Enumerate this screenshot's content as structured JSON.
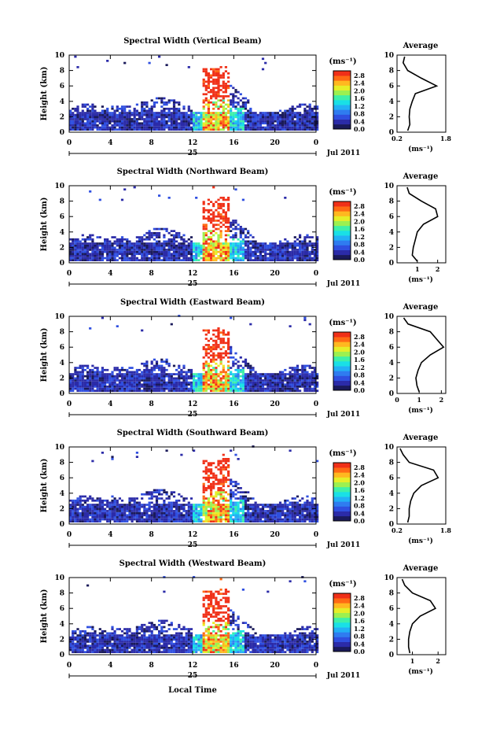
{
  "colorbar": {
    "unit": "(ms⁻¹)",
    "ticks": [
      "0.0",
      "0.4",
      "0.8",
      "1.2",
      "1.6",
      "2.0",
      "2.4",
      "2.8"
    ],
    "colors": [
      "#1a1a5a",
      "#2b2ba8",
      "#2f4fe0",
      "#2f7cf0",
      "#22b0f5",
      "#19e0e6",
      "#3ef0a8",
      "#9cf050",
      "#e6ee28",
      "#ffb820",
      "#ff6a14",
      "#f03018"
    ]
  },
  "x_axis": {
    "ticks": [
      "0",
      "4",
      "8",
      "12",
      "16",
      "20",
      "0"
    ],
    "day": "25",
    "date": "Jul 2011",
    "label": "Local Time"
  },
  "y_axis": {
    "label": "Height (km)",
    "ticks": [
      "0",
      "2",
      "4",
      "6",
      "8",
      "10"
    ]
  },
  "avg_title": "Average",
  "avg_xlabel": "(ms⁻¹)",
  "chart_data": [
    {
      "type": "heatmap",
      "title": "Spectral Width (Vertical Beam)",
      "xlabel": "",
      "ylabel": "Height (km)",
      "xlim": [
        0,
        24
      ],
      "ylim": [
        0,
        10
      ],
      "clim": [
        0.0,
        2.8
      ],
      "avg_profile": {
        "xticks": [
          "0.2",
          "1.8"
        ],
        "xlim": [
          0.2,
          1.8
        ],
        "height": [
          0.2,
          1,
          2,
          3,
          4,
          5,
          6,
          7,
          8,
          9,
          9.8
        ],
        "width": [
          0.55,
          0.62,
          0.6,
          0.62,
          0.7,
          0.8,
          1.5,
          1.0,
          0.55,
          0.4,
          0.45
        ]
      }
    },
    {
      "type": "heatmap",
      "title": "Spectral Width (Northward Beam)",
      "xlabel": "",
      "ylabel": "Height (km)",
      "xlim": [
        0,
        24
      ],
      "ylim": [
        0,
        10
      ],
      "clim": [
        0.0,
        2.8
      ],
      "avg_profile": {
        "xticks": [
          "1",
          "2"
        ],
        "xlim": [
          0,
          2.4
        ],
        "height": [
          0.2,
          1,
          2,
          3,
          4,
          5,
          6,
          7,
          8,
          9,
          9.8
        ],
        "width": [
          1.0,
          0.75,
          0.8,
          0.9,
          1.0,
          1.3,
          2.0,
          1.9,
          1.2,
          0.6,
          0.5
        ]
      }
    },
    {
      "type": "heatmap",
      "title": "Spectral Width (Eastward Beam)",
      "xlabel": "",
      "ylabel": "Height (km)",
      "xlim": [
        0,
        24
      ],
      "ylim": [
        0,
        10
      ],
      "clim": [
        0.0,
        2.8
      ],
      "avg_profile": {
        "xticks": [
          "0",
          "1",
          "2"
        ],
        "xlim": [
          0,
          2.2
        ],
        "height": [
          0.2,
          1,
          2,
          3,
          4,
          5,
          6,
          7,
          8,
          9,
          9.8
        ],
        "width": [
          1.0,
          0.9,
          0.85,
          0.95,
          1.1,
          1.5,
          2.1,
          1.8,
          1.5,
          0.5,
          0.3
        ]
      }
    },
    {
      "type": "heatmap",
      "title": "Spectral Width (Southward Beam)",
      "xlabel": "",
      "ylabel": "Height (km)",
      "xlim": [
        0,
        24
      ],
      "ylim": [
        0,
        10
      ],
      "clim": [
        0.0,
        2.8
      ],
      "avg_profile": {
        "xticks": [
          "0.2",
          "1.8"
        ],
        "xlim": [
          0.2,
          1.8
        ],
        "height": [
          0.2,
          1,
          2,
          3,
          4,
          5,
          6,
          7,
          8,
          9,
          9.8
        ],
        "width": [
          0.55,
          0.6,
          0.6,
          0.65,
          0.75,
          1.0,
          1.55,
          1.4,
          0.6,
          0.4,
          0.3
        ]
      }
    },
    {
      "type": "heatmap",
      "title": "Spectral Width (Westward Beam)",
      "xlabel": "",
      "ylabel": "Height (km)",
      "xlim": [
        0,
        24
      ],
      "ylim": [
        0,
        10
      ],
      "clim": [
        0.0,
        2.8
      ],
      "avg_profile": {
        "xticks": [
          "1",
          "2"
        ],
        "xlim": [
          0.4,
          2.3
        ],
        "height": [
          0.2,
          1,
          2,
          3,
          4,
          5,
          6,
          7,
          8,
          9,
          9.8
        ],
        "width": [
          0.9,
          0.85,
          0.85,
          0.9,
          1.0,
          1.3,
          1.9,
          1.7,
          1.0,
          0.7,
          0.6
        ]
      }
    }
  ]
}
